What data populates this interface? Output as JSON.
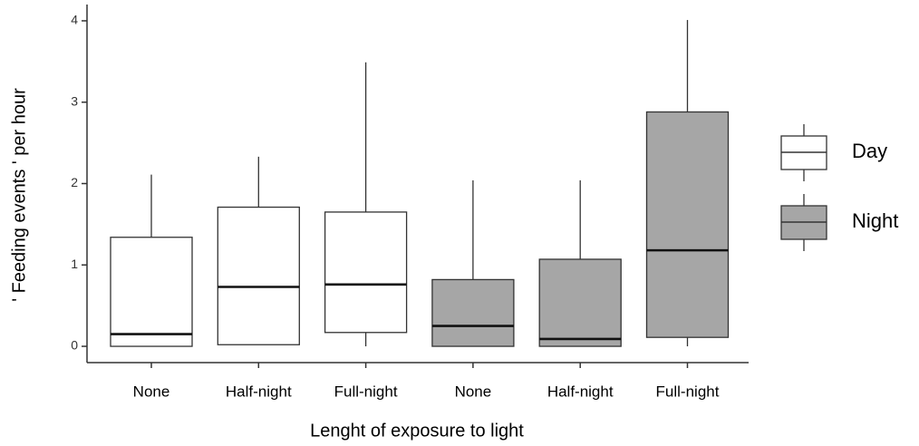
{
  "chart_data": {
    "type": "box",
    "xlabel": "Lenght of exposure to light",
    "ylabel": "' Feeding events ' per hour",
    "categories": [
      "None",
      "Half-night",
      "Full-night",
      "None",
      "Half-night",
      "Full-night"
    ],
    "ylim": [
      -0.2,
      4.2
    ],
    "yticks": [
      0,
      1,
      2,
      3,
      4
    ],
    "series": [
      {
        "name": "Day",
        "color": "#ffffff",
        "min": [
          0,
          0.02,
          0,
          null,
          null,
          null
        ],
        "q1": [
          0,
          0.02,
          0.17,
          null,
          null,
          null
        ],
        "median": [
          0.15,
          0.73,
          0.76,
          null,
          null,
          null
        ],
        "q3": [
          1.34,
          1.71,
          1.65,
          null,
          null,
          null
        ],
        "max": [
          2.11,
          2.33,
          3.49,
          null,
          null,
          null
        ]
      },
      {
        "name": "Night",
        "color": "#a6a6a6",
        "min": [
          null,
          null,
          null,
          0,
          0,
          0
        ],
        "q1": [
          null,
          null,
          null,
          0,
          0,
          0.11
        ],
        "median": [
          null,
          null,
          null,
          0.25,
          0.09,
          1.18
        ],
        "q3": [
          null,
          null,
          null,
          0.82,
          1.07,
          2.88
        ],
        "max": [
          null,
          null,
          null,
          2.04,
          2.04,
          4.01
        ]
      }
    ],
    "legend": "right"
  }
}
